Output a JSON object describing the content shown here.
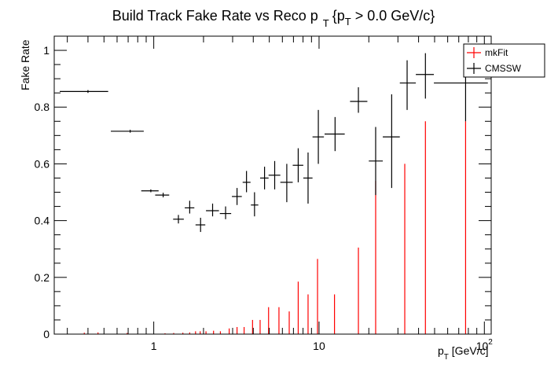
{
  "chart_data": {
    "type": "scatter",
    "title": {
      "main": "Build Track Fake Rate vs Reco p",
      "sub1": "T",
      "brace": "{p",
      "sub2": "T",
      "tail": " > 0.0 GeV/c}"
    },
    "xlabel": {
      "main": "p",
      "sub": "T",
      "unit": " [GeV/c]"
    },
    "ylabel": "Fake Rate",
    "x_scale": "log",
    "xlim": [
      0.25,
      110
    ],
    "ylim": [
      0,
      1.05
    ],
    "x_ticks": [
      {
        "value": 1,
        "label": "1",
        "sup": ""
      },
      {
        "value": 10,
        "label": "10",
        "sup": ""
      },
      {
        "value": 100,
        "label": "10",
        "sup": "2"
      }
    ],
    "y_ticks": [
      {
        "value": 0,
        "label": "0"
      },
      {
        "value": 0.2,
        "label": "0.2"
      },
      {
        "value": 0.4,
        "label": "0.4"
      },
      {
        "value": 0.6,
        "label": "0.6"
      },
      {
        "value": 0.8,
        "label": "0.8"
      },
      {
        "value": 1,
        "label": "1"
      }
    ],
    "legend": {
      "placement": "top-right",
      "entries": [
        {
          "name": "mkFit",
          "color": "#ff0000"
        },
        {
          "name": "CMSSW",
          "color": "#000000"
        }
      ]
    },
    "series": [
      {
        "name": "mkFit",
        "color": "#ff0000",
        "style": "vertical-lines-from-zero",
        "points": [
          {
            "x": 0.38,
            "y": 0.005
          },
          {
            "x": 0.46,
            "y": 0.006
          },
          {
            "x": 0.69,
            "y": 0.004
          },
          {
            "x": 1.17,
            "y": 0.003
          },
          {
            "x": 1.32,
            "y": 0.004
          },
          {
            "x": 1.5,
            "y": 0.005
          },
          {
            "x": 1.65,
            "y": 0.006
          },
          {
            "x": 1.79,
            "y": 0.01
          },
          {
            "x": 1.91,
            "y": 0.01
          },
          {
            "x": 2.07,
            "y": 0.01
          },
          {
            "x": 2.3,
            "y": 0.012
          },
          {
            "x": 2.53,
            "y": 0.01
          },
          {
            "x": 2.86,
            "y": 0.02
          },
          {
            "x": 3.19,
            "y": 0.025
          },
          {
            "x": 3.52,
            "y": 0.025
          },
          {
            "x": 3.96,
            "y": 0.05
          },
          {
            "x": 4.4,
            "y": 0.05
          },
          {
            "x": 4.95,
            "y": 0.095
          },
          {
            "x": 5.72,
            "y": 0.095
          },
          {
            "x": 6.6,
            "y": 0.08
          },
          {
            "x": 7.48,
            "y": 0.185
          },
          {
            "x": 8.58,
            "y": 0.14
          },
          {
            "x": 9.79,
            "y": 0.265
          },
          {
            "x": 12.4,
            "y": 0.14
          },
          {
            "x": 17.3,
            "y": 0.305
          },
          {
            "x": 22.0,
            "y": 0.54
          },
          {
            "x": 33.0,
            "y": 0.6
          },
          {
            "x": 44.0,
            "y": 0.75
          },
          {
            "x": 77.0,
            "y": 0.75
          }
        ]
      },
      {
        "name": "CMSSW",
        "color": "#000000",
        "style": "points-with-error-bars",
        "points": [
          {
            "x": 0.4,
            "xlo": 0.27,
            "xhi": 0.53,
            "y": 0.855,
            "ylo": 0.85,
            "yhi": 0.86
          },
          {
            "x": 0.72,
            "xlo": 0.55,
            "xhi": 0.87,
            "y": 0.715,
            "ylo": 0.71,
            "yhi": 0.72
          },
          {
            "x": 0.96,
            "xlo": 0.84,
            "xhi": 1.07,
            "y": 0.505,
            "ylo": 0.5,
            "yhi": 0.51
          },
          {
            "x": 1.14,
            "xlo": 1.02,
            "xhi": 1.24,
            "y": 0.49,
            "ylo": 0.482,
            "yhi": 0.498
          },
          {
            "x": 1.41,
            "xlo": 1.31,
            "xhi": 1.52,
            "y": 0.405,
            "ylo": 0.39,
            "yhi": 0.42
          },
          {
            "x": 1.65,
            "xlo": 1.54,
            "xhi": 1.76,
            "y": 0.445,
            "ylo": 0.425,
            "yhi": 0.47
          },
          {
            "x": 1.92,
            "xlo": 1.79,
            "xhi": 2.05,
            "y": 0.385,
            "ylo": 0.36,
            "yhi": 0.41
          },
          {
            "x": 2.27,
            "xlo": 2.07,
            "xhi": 2.48,
            "y": 0.435,
            "ylo": 0.415,
            "yhi": 0.46
          },
          {
            "x": 2.72,
            "xlo": 2.51,
            "xhi": 2.94,
            "y": 0.425,
            "ylo": 0.405,
            "yhi": 0.45
          },
          {
            "x": 3.19,
            "xlo": 2.97,
            "xhi": 3.41,
            "y": 0.485,
            "ylo": 0.455,
            "yhi": 0.515
          },
          {
            "x": 3.64,
            "xlo": 3.45,
            "xhi": 3.85,
            "y": 0.535,
            "ylo": 0.5,
            "yhi": 0.575
          },
          {
            "x": 4.07,
            "xlo": 3.87,
            "xhi": 4.29,
            "y": 0.455,
            "ylo": 0.415,
            "yhi": 0.5
          },
          {
            "x": 4.68,
            "xlo": 4.4,
            "xhi": 4.95,
            "y": 0.55,
            "ylo": 0.51,
            "yhi": 0.59
          },
          {
            "x": 5.39,
            "xlo": 4.95,
            "xhi": 5.83,
            "y": 0.56,
            "ylo": 0.51,
            "yhi": 0.61
          },
          {
            "x": 6.38,
            "xlo": 5.83,
            "xhi": 6.93,
            "y": 0.535,
            "ylo": 0.465,
            "yhi": 0.6
          },
          {
            "x": 7.48,
            "xlo": 6.93,
            "xhi": 8.03,
            "y": 0.595,
            "ylo": 0.535,
            "yhi": 0.655
          },
          {
            "x": 8.58,
            "xlo": 8.03,
            "xhi": 9.13,
            "y": 0.55,
            "ylo": 0.46,
            "yhi": 0.64
          },
          {
            "x": 9.9,
            "xlo": 9.13,
            "xhi": 10.7,
            "y": 0.695,
            "ylo": 0.6,
            "yhi": 0.79
          },
          {
            "x": 12.5,
            "xlo": 10.8,
            "xhi": 14.3,
            "y": 0.705,
            "ylo": 0.645,
            "yhi": 0.765
          },
          {
            "x": 17.3,
            "xlo": 15.4,
            "xhi": 19.6,
            "y": 0.82,
            "ylo": 0.78,
            "yhi": 0.87
          },
          {
            "x": 22.0,
            "xlo": 20.0,
            "xhi": 24.3,
            "y": 0.61,
            "ylo": 0.49,
            "yhi": 0.73
          },
          {
            "x": 27.5,
            "xlo": 24.3,
            "xhi": 30.8,
            "y": 0.695,
            "ylo": 0.515,
            "yhi": 0.845
          },
          {
            "x": 34.1,
            "xlo": 30.8,
            "xhi": 38.5,
            "y": 0.885,
            "ylo": 0.79,
            "yhi": 0.965
          },
          {
            "x": 44.0,
            "xlo": 38.5,
            "xhi": 49.5,
            "y": 0.915,
            "ylo": 0.83,
            "yhi": 0.99
          },
          {
            "x": 77.0,
            "xlo": 49.5,
            "xhi": 105.0,
            "y": 0.885,
            "ylo": 0.75,
            "yhi": 1.02
          }
        ]
      }
    ]
  }
}
